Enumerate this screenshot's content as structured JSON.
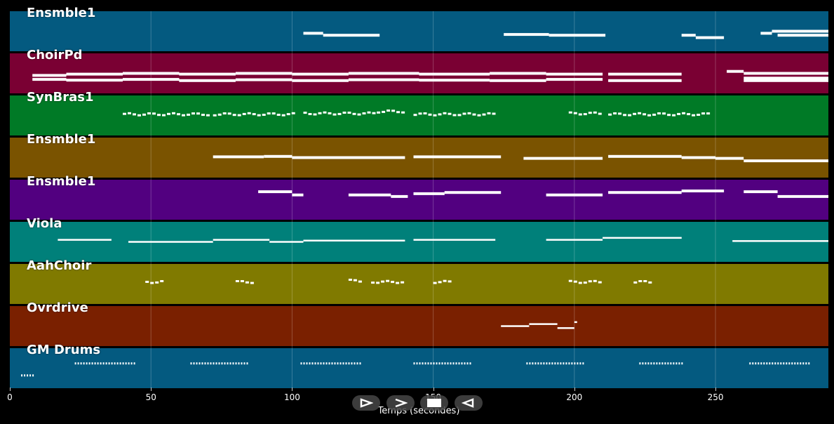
{
  "colors": {
    "background": "#000000",
    "note": "#ffffff"
  },
  "tracks": [
    {
      "name": "Ensmble1",
      "color": "#045a80",
      "type": "melodic",
      "notes": [
        [
          104,
          111,
          0.55
        ],
        [
          111,
          131,
          0.6
        ],
        [
          175,
          191,
          0.58
        ],
        [
          191,
          211,
          0.6
        ],
        [
          238,
          243,
          0.6
        ],
        [
          243,
          253,
          0.66
        ],
        [
          266,
          270,
          0.55
        ],
        [
          270,
          290,
          0.5
        ],
        [
          272,
          290,
          0.6
        ]
      ]
    },
    {
      "name": "ChoirPd",
      "color": "#7a0033",
      "type": "melodic",
      "notes": [
        [
          8,
          20,
          0.55
        ],
        [
          8,
          20,
          0.65
        ],
        [
          20,
          40,
          0.52
        ],
        [
          20,
          40,
          0.67
        ],
        [
          40,
          60,
          0.5
        ],
        [
          40,
          60,
          0.65
        ],
        [
          60,
          80,
          0.52
        ],
        [
          60,
          80,
          0.68
        ],
        [
          80,
          100,
          0.5
        ],
        [
          80,
          100,
          0.66
        ],
        [
          100,
          120,
          0.52
        ],
        [
          100,
          120,
          0.68
        ],
        [
          120,
          145,
          0.5
        ],
        [
          120,
          145,
          0.66
        ],
        [
          145,
          170,
          0.52
        ],
        [
          145,
          170,
          0.67
        ],
        [
          170,
          190,
          0.5
        ],
        [
          170,
          190,
          0.68
        ],
        [
          190,
          210,
          0.52
        ],
        [
          190,
          210,
          0.65
        ],
        [
          212,
          238,
          0.52
        ],
        [
          212,
          238,
          0.68
        ],
        [
          254,
          260,
          0.45
        ],
        [
          260,
          290,
          0.5
        ],
        [
          260,
          290,
          0.62
        ],
        [
          260,
          290,
          0.68
        ]
      ]
    },
    {
      "name": "SynBras1",
      "color": "#007a26",
      "type": "staccato",
      "notes": [
        [
          40,
          70,
          0.47
        ],
        [
          72,
          100,
          0.47
        ],
        [
          104,
          130,
          0.45
        ],
        [
          130,
          140,
          0.4
        ],
        [
          143,
          172,
          0.47
        ],
        [
          198,
          210,
          0.45
        ],
        [
          212,
          248,
          0.47
        ]
      ]
    },
    {
      "name": "Ensmble1",
      "color": "#7a5300",
      "type": "melodic",
      "notes": [
        [
          72,
          90,
          0.48
        ],
        [
          90,
          100,
          0.47
        ],
        [
          100,
          140,
          0.5
        ],
        [
          143,
          174,
          0.48
        ],
        [
          182,
          210,
          0.52
        ],
        [
          212,
          238,
          0.47
        ],
        [
          238,
          250,
          0.5
        ],
        [
          250,
          260,
          0.52
        ],
        [
          260,
          290,
          0.58
        ]
      ]
    },
    {
      "name": "Ensmble1",
      "color": "#520080",
      "type": "melodic",
      "notes": [
        [
          88,
          100,
          0.3
        ],
        [
          100,
          104,
          0.38
        ],
        [
          120,
          135,
          0.38
        ],
        [
          135,
          141,
          0.42
        ],
        [
          143,
          154,
          0.35
        ],
        [
          154,
          174,
          0.32
        ],
        [
          190,
          210,
          0.38
        ],
        [
          212,
          238,
          0.32
        ],
        [
          238,
          253,
          0.28
        ],
        [
          260,
          272,
          0.3
        ],
        [
          272,
          290,
          0.42
        ]
      ]
    },
    {
      "name": "Viola",
      "color": "#00807a",
      "type": "melodic-thin",
      "notes": [
        [
          17,
          36,
          0.45
        ],
        [
          42,
          72,
          0.5
        ],
        [
          72,
          92,
          0.45
        ],
        [
          92,
          104,
          0.5
        ],
        [
          104,
          140,
          0.47
        ],
        [
          143,
          172,
          0.45
        ],
        [
          190,
          210,
          0.45
        ],
        [
          210,
          238,
          0.4
        ],
        [
          256,
          290,
          0.48
        ]
      ]
    },
    {
      "name": "AahChoir",
      "color": "#807a00",
      "type": "staccato",
      "notes": [
        [
          48,
          54,
          0.45
        ],
        [
          80,
          86,
          0.45
        ],
        [
          120,
          124,
          0.42
        ],
        [
          128,
          139,
          0.45
        ],
        [
          150,
          156,
          0.45
        ],
        [
          198,
          210,
          0.45
        ],
        [
          221,
          227,
          0.45
        ]
      ]
    },
    {
      "name": "Ovrdrive",
      "color": "#7a2000",
      "type": "melodic-thin",
      "notes": [
        [
          174,
          184,
          0.5
        ],
        [
          184,
          194,
          0.45
        ],
        [
          194,
          200,
          0.55
        ],
        [
          200,
          201,
          0.4
        ]
      ]
    },
    {
      "name": "GM Drums",
      "color": "#045a80",
      "type": "drums",
      "notes": [
        [
          4,
          8,
          0.68
        ],
        [
          23,
          44,
          0.38
        ],
        [
          64,
          84,
          0.38
        ],
        [
          103,
          124,
          0.38
        ],
        [
          143,
          163,
          0.38
        ],
        [
          183,
          203,
          0.38
        ],
        [
          223,
          238,
          0.38
        ],
        [
          262,
          283,
          0.38
        ]
      ]
    }
  ],
  "axis": {
    "xlabel": "Temps (secondes)",
    "xlim": [
      0,
      290
    ],
    "ticks": [
      0,
      50,
      100,
      150,
      200,
      250
    ],
    "tick_labels": [
      "0",
      "50",
      "100",
      "150",
      "200",
      "250"
    ]
  },
  "controls": {
    "play": {
      "icon": "play-outline-icon"
    },
    "forward": {
      "icon": "chevron-right-icon"
    },
    "stop": {
      "icon": "stop-icon"
    },
    "rewind": {
      "icon": "rewind-triangle-icon"
    }
  }
}
